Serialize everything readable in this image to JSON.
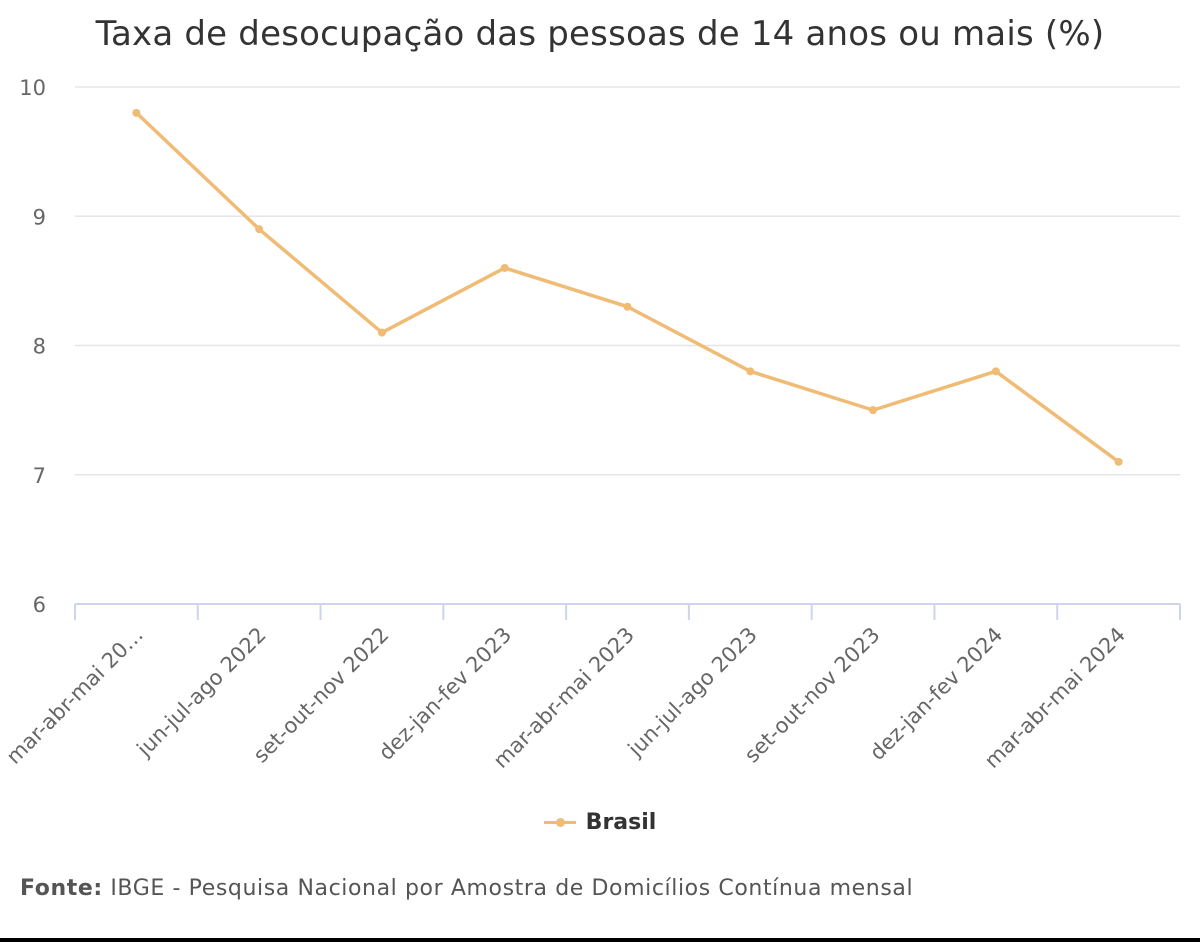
{
  "colors": {
    "series": "#f0bb74",
    "grid": "#e6e6e6",
    "axis": "#ccd6eb",
    "text": "#333333",
    "muted": "#666666"
  },
  "chart_data": {
    "type": "line",
    "title": "Taxa de desocupação das pessoas de 14 anos ou mais (%)",
    "xlabel": "",
    "ylabel": "",
    "categories": [
      "mar-abr-mai 20…",
      "jun-jul-ago 2022",
      "set-out-nov 2022",
      "dez-jan-fev 2023",
      "mar-abr-mai 2023",
      "jun-jul-ago 2023",
      "set-out-nov 2023",
      "dez-jan-fev 2024",
      "mar-abr-mai 2024"
    ],
    "series": [
      {
        "name": "Brasil",
        "color": "#f0bb74",
        "values": [
          9.8,
          8.9,
          8.1,
          8.6,
          8.3,
          7.8,
          7.5,
          7.8,
          7.1
        ]
      }
    ],
    "ylim": [
      6,
      10
    ],
    "yticks": [
      "6",
      "7",
      "8",
      "9",
      "10"
    ],
    "grid": true,
    "legend_position": "bottom-center"
  },
  "legend": {
    "label": "Brasil"
  },
  "source": {
    "label": "Fonte:",
    "text": "IBGE - Pesquisa Nacional por Amostra de Domicílios Contínua mensal"
  }
}
